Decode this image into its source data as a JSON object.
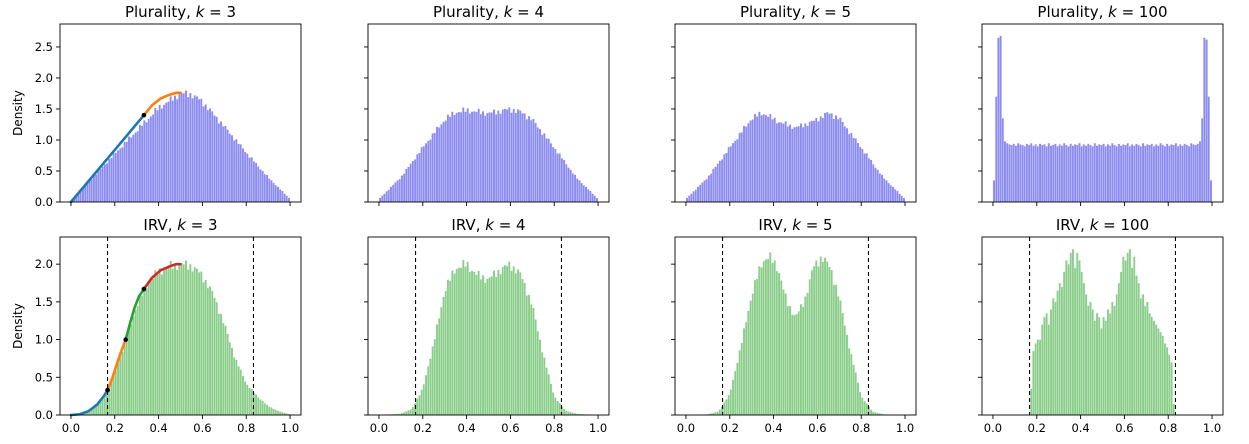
{
  "chart_data": [
    {
      "type": "bar",
      "title": {
        "prefix": "Plurality, ",
        "k": "3"
      },
      "ylabel": "Density",
      "xlim": [
        -0.05,
        1.05
      ],
      "ylim": [
        0,
        2.87
      ],
      "xticks": [
        0.0,
        0.2,
        0.4,
        0.6,
        0.8,
        1.0
      ],
      "xtick_labels_shown": false,
      "yticks": [
        0.0,
        0.5,
        1.0,
        1.5,
        2.0,
        2.5
      ],
      "ytick_labels": [
        "0.0",
        "0.5",
        "1.0",
        "1.5",
        "2.0",
        "2.5"
      ],
      "bar_color": "#7777ee",
      "bin_edges_range": [
        0,
        1
      ],
      "histogram": {
        "knots_x": [
          0,
          0.1,
          0.2,
          0.3,
          0.4,
          0.5,
          0.55,
          0.6,
          0.7,
          0.8,
          0.9,
          1.0
        ],
        "knots_y": [
          0.02,
          0.4,
          0.78,
          1.15,
          1.52,
          1.75,
          1.74,
          1.62,
          1.22,
          0.8,
          0.4,
          0.05
        ]
      },
      "curves": [
        {
          "color": "#1f77b4",
          "x": [
            0,
            0.1,
            0.2,
            0.3,
            0.333
          ],
          "y": [
            0,
            0.42,
            0.84,
            1.26,
            1.4
          ]
        },
        {
          "color": "#ff7f0e",
          "x": [
            0.333,
            0.37,
            0.41,
            0.45,
            0.48,
            0.5
          ],
          "y": [
            1.4,
            1.56,
            1.67,
            1.73,
            1.76,
            1.76
          ]
        }
      ],
      "points": [
        {
          "x": 0.333,
          "y": 1.4
        }
      ],
      "vlines": []
    },
    {
      "type": "bar",
      "title": {
        "prefix": "Plurality, ",
        "k": "4"
      },
      "xlim": [
        -0.05,
        1.05
      ],
      "ylim": [
        0,
        2.87
      ],
      "xticks": [
        0.0,
        0.2,
        0.4,
        0.6,
        0.8,
        1.0
      ],
      "xtick_labels_shown": false,
      "yticks": [
        0.0,
        0.5,
        1.0,
        1.5,
        2.0,
        2.5
      ],
      "bar_color": "#7777ee",
      "bin_edges_range": [
        0,
        1
      ],
      "histogram": {
        "knots_x": [
          0,
          0.1,
          0.2,
          0.3,
          0.35,
          0.4,
          0.5,
          0.6,
          0.65,
          0.7,
          0.8,
          0.9,
          1.0
        ],
        "knots_y": [
          0.05,
          0.4,
          0.88,
          1.33,
          1.45,
          1.48,
          1.43,
          1.5,
          1.45,
          1.33,
          0.88,
          0.4,
          0.05
        ]
      },
      "curves": [],
      "points": [],
      "vlines": []
    },
    {
      "type": "bar",
      "title": {
        "prefix": "Plurality, ",
        "k": "5"
      },
      "xlim": [
        -0.05,
        1.05
      ],
      "ylim": [
        0,
        2.87
      ],
      "xticks": [
        0.0,
        0.2,
        0.4,
        0.6,
        0.8,
        1.0
      ],
      "xtick_labels_shown": false,
      "yticks": [
        0.0,
        0.5,
        1.0,
        1.5,
        2.0,
        2.5
      ],
      "bar_color": "#7777ee",
      "bin_edges_range": [
        0,
        1
      ],
      "histogram": {
        "knots_x": [
          0,
          0.1,
          0.2,
          0.3,
          0.35,
          0.42,
          0.5,
          0.58,
          0.65,
          0.7,
          0.8,
          0.9,
          1.0
        ],
        "knots_y": [
          0.05,
          0.4,
          0.88,
          1.35,
          1.44,
          1.3,
          1.2,
          1.3,
          1.44,
          1.35,
          0.88,
          0.4,
          0.05
        ]
      },
      "curves": [],
      "points": [],
      "vlines": []
    },
    {
      "type": "bar",
      "title": {
        "prefix": "Plurality, ",
        "k": "100"
      },
      "xlim": [
        -0.05,
        1.05
      ],
      "ylim": [
        0,
        2.87
      ],
      "xticks": [
        0.0,
        0.2,
        0.4,
        0.6,
        0.8,
        1.0
      ],
      "xtick_labels_shown": false,
      "yticks": [
        0.0,
        0.5,
        1.0,
        1.5,
        2.0,
        2.5
      ],
      "bar_color": "#7777ee",
      "bin_edges_range": [
        0,
        1
      ],
      "histogram": {
        "values": [
          0.35,
          1.7,
          2.65,
          2.68,
          1.35,
          0.98,
          0.95,
          0.93,
          0.92,
          0.94,
          0.91,
          0.95,
          0.93,
          0.92,
          0.9,
          0.94,
          0.92,
          0.95,
          0.91,
          0.93,
          0.9,
          0.94,
          0.92,
          0.93,
          0.9,
          0.95,
          0.91,
          0.92,
          0.94,
          0.9,
          0.93,
          0.91,
          0.95,
          0.92,
          0.9,
          0.94,
          0.91,
          0.93,
          0.92,
          0.95,
          0.9,
          0.93,
          0.91,
          0.94,
          0.92,
          0.9,
          0.95,
          0.91,
          0.93,
          0.92,
          0.94,
          0.9,
          0.93,
          0.91,
          0.95,
          0.92,
          0.9,
          0.94,
          0.91,
          0.93,
          0.92,
          0.95,
          0.9,
          0.93,
          0.91,
          0.94,
          0.92,
          0.9,
          0.95,
          0.91,
          0.93,
          0.92,
          0.94,
          0.9,
          0.93,
          0.91,
          0.95,
          0.92,
          0.9,
          0.94,
          0.91,
          0.93,
          0.92,
          0.95,
          0.9,
          0.93,
          0.91,
          0.94,
          0.92,
          0.9,
          0.95,
          0.93,
          0.92,
          0.94,
          0.98,
          1.35,
          2.65,
          2.62,
          1.7,
          0.35
        ]
      },
      "curves": [],
      "points": [],
      "vlines": []
    },
    {
      "type": "bar",
      "title": {
        "prefix": "IRV, ",
        "k": "3"
      },
      "ylabel": "Density",
      "xlim": [
        -0.05,
        1.05
      ],
      "ylim": [
        0,
        2.36
      ],
      "xticks": [
        0.0,
        0.2,
        0.4,
        0.6,
        0.8,
        1.0
      ],
      "xtick_labels": [
        "0.0",
        "0.2",
        "0.4",
        "0.6",
        "0.8",
        "1.0"
      ],
      "xtick_labels_shown": true,
      "yticks": [
        0.0,
        0.5,
        1.0,
        1.5,
        2.0
      ],
      "ytick_labels": [
        "0.0",
        "0.5",
        "1.0",
        "1.5",
        "2.0"
      ],
      "bar_color": "#77c677",
      "bin_edges_range": [
        0,
        1
      ],
      "histogram": {
        "knots_x": [
          0,
          0.05,
          0.1,
          0.15,
          0.2,
          0.25,
          0.3,
          0.35,
          0.4,
          0.45,
          0.5,
          0.55,
          0.6,
          0.65,
          0.7,
          0.75,
          0.8,
          0.85,
          0.9,
          0.95,
          1.0
        ],
        "knots_y": [
          0.0,
          0.02,
          0.1,
          0.25,
          0.55,
          1.0,
          1.45,
          1.75,
          1.9,
          1.97,
          2.0,
          1.98,
          1.85,
          1.6,
          1.2,
          0.75,
          0.42,
          0.25,
          0.12,
          0.05,
          0.01
        ]
      },
      "curves": [
        {
          "color": "#1f77b4",
          "x": [
            0,
            0.04,
            0.08,
            0.12,
            0.15,
            0.167
          ],
          "y": [
            0,
            0.01,
            0.05,
            0.14,
            0.25,
            0.33
          ]
        },
        {
          "color": "#ff7f0e",
          "x": [
            0.167,
            0.19,
            0.21,
            0.23,
            0.25
          ],
          "y": [
            0.33,
            0.5,
            0.68,
            0.85,
            1.0
          ]
        },
        {
          "color": "#2ca02c",
          "x": [
            0.25,
            0.27,
            0.29,
            0.31,
            0.333
          ],
          "y": [
            1.0,
            1.22,
            1.42,
            1.57,
            1.67
          ]
        },
        {
          "color": "#d62728",
          "x": [
            0.333,
            0.37,
            0.41,
            0.45,
            0.48,
            0.5
          ],
          "y": [
            1.67,
            1.82,
            1.92,
            1.97,
            2.0,
            2.0
          ]
        }
      ],
      "points": [
        {
          "x": 0.167,
          "y": 0.33
        },
        {
          "x": 0.25,
          "y": 1.0
        },
        {
          "x": 0.333,
          "y": 1.67
        }
      ],
      "vlines": [
        0.167,
        0.833
      ]
    },
    {
      "type": "bar",
      "title": {
        "prefix": "IRV, ",
        "k": "4"
      },
      "xlim": [
        -0.05,
        1.05
      ],
      "ylim": [
        0,
        2.36
      ],
      "xticks": [
        0.0,
        0.2,
        0.4,
        0.6,
        0.8,
        1.0
      ],
      "xtick_labels": [
        "0.0",
        "0.2",
        "0.4",
        "0.6",
        "0.8",
        "1.0"
      ],
      "xtick_labels_shown": true,
      "yticks": [
        0.0,
        0.5,
        1.0,
        1.5,
        2.0
      ],
      "bar_color": "#77c677",
      "bin_edges_range": [
        0,
        1
      ],
      "histogram": {
        "knots_x": [
          0,
          0.1,
          0.15,
          0.2,
          0.25,
          0.3,
          0.35,
          0.4,
          0.45,
          0.5,
          0.55,
          0.6,
          0.65,
          0.7,
          0.75,
          0.8,
          0.85,
          0.9,
          1.0
        ],
        "knots_y": [
          0.0,
          0.02,
          0.08,
          0.35,
          0.95,
          1.65,
          1.95,
          2.0,
          1.85,
          1.8,
          1.92,
          2.0,
          1.85,
          1.45,
          0.8,
          0.25,
          0.06,
          0.02,
          0.0
        ]
      },
      "curves": [],
      "points": [],
      "vlines": [
        0.167,
        0.833
      ]
    },
    {
      "type": "bar",
      "title": {
        "prefix": "IRV, ",
        "k": "5"
      },
      "xlim": [
        -0.05,
        1.05
      ],
      "ylim": [
        0,
        2.36
      ],
      "xticks": [
        0.0,
        0.2,
        0.4,
        0.6,
        0.8,
        1.0
      ],
      "xtick_labels": [
        "0.0",
        "0.2",
        "0.4",
        "0.6",
        "0.8",
        "1.0"
      ],
      "xtick_labels_shown": true,
      "yticks": [
        0.0,
        0.5,
        1.0,
        1.5,
        2.0
      ],
      "bar_color": "#77c677",
      "bin_edges_range": [
        0,
        1
      ],
      "histogram": {
        "knots_x": [
          0,
          0.1,
          0.15,
          0.2,
          0.25,
          0.3,
          0.35,
          0.38,
          0.42,
          0.46,
          0.5,
          0.54,
          0.58,
          0.62,
          0.66,
          0.7,
          0.75,
          0.8,
          0.85,
          0.9,
          1.0
        ],
        "knots_y": [
          0.0,
          0.01,
          0.05,
          0.28,
          0.9,
          1.6,
          2.05,
          2.1,
          1.95,
          1.5,
          1.3,
          1.5,
          1.95,
          2.1,
          1.95,
          1.55,
          0.85,
          0.25,
          0.05,
          0.01,
          0.0
        ]
      },
      "curves": [],
      "points": [],
      "vlines": [
        0.167,
        0.833
      ]
    },
    {
      "type": "bar",
      "title": {
        "prefix": "IRV, ",
        "k": "100"
      },
      "xlim": [
        -0.05,
        1.05
      ],
      "ylim": [
        0,
        2.36
      ],
      "xticks": [
        0.0,
        0.2,
        0.4,
        0.6,
        0.8,
        1.0
      ],
      "xtick_labels": [
        "0.0",
        "0.2",
        "0.4",
        "0.6",
        "0.8",
        "1.0"
      ],
      "xtick_labels_shown": true,
      "yticks": [
        0.0,
        0.5,
        1.0,
        1.5,
        2.0
      ],
      "bar_color": "#77c677",
      "bin_edges_range": [
        0,
        1
      ],
      "histogram": {
        "values": [
          0,
          0,
          0,
          0,
          0,
          0,
          0,
          0,
          0,
          0,
          0,
          0,
          0,
          0,
          0,
          0,
          0,
          0.35,
          0.85,
          0.95,
          1.0,
          1.0,
          1.2,
          1.3,
          1.35,
          1.2,
          1.4,
          1.55,
          1.5,
          1.65,
          1.75,
          1.7,
          1.9,
          2.05,
          2.0,
          2.15,
          2.2,
          1.95,
          2.15,
          2.05,
          1.9,
          1.75,
          1.6,
          1.45,
          1.5,
          1.4,
          1.25,
          1.35,
          1.3,
          1.15,
          1.3,
          1.25,
          1.4,
          1.35,
          1.5,
          1.45,
          1.6,
          1.75,
          1.9,
          2.1,
          2.05,
          2.15,
          2.2,
          1.95,
          2.1,
          1.85,
          1.75,
          1.55,
          1.6,
          1.45,
          1.5,
          1.35,
          1.3,
          1.25,
          1.2,
          1.15,
          1.1,
          1.05,
          0.95,
          0.9,
          0.8,
          0.7,
          0.15,
          0,
          0,
          0,
          0,
          0,
          0,
          0,
          0,
          0,
          0,
          0,
          0,
          0,
          0,
          0,
          0,
          0
        ]
      },
      "curves": [],
      "points": [],
      "vlines": [
        0.167,
        0.833
      ]
    }
  ]
}
